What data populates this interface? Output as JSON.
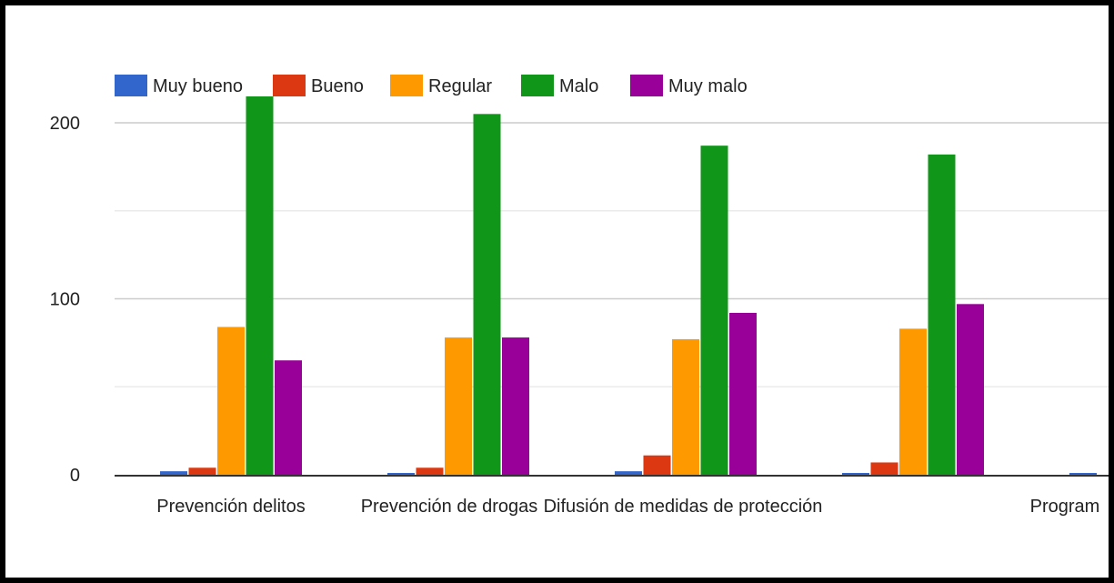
{
  "chart_data": {
    "type": "bar",
    "title": "",
    "xlabel": "",
    "ylabel": "",
    "ylim": [
      0,
      230
    ],
    "yticks": [
      0,
      100,
      200
    ],
    "grid": true,
    "legend_position": "top-left",
    "categories": [
      "Prevención delitos",
      "Prevención de drogas",
      "Difusión de medidas de protección",
      "",
      "Program"
    ],
    "series": [
      {
        "name": "Muy bueno",
        "color": "#3366cc",
        "values": [
          2,
          1,
          2,
          1,
          1
        ]
      },
      {
        "name": "Bueno",
        "color": "#dc3912",
        "values": [
          4,
          4,
          11,
          7,
          null
        ]
      },
      {
        "name": "Regular",
        "color": "#ff9900",
        "values": [
          84,
          78,
          77,
          83,
          null
        ]
      },
      {
        "name": "Malo",
        "color": "#109618",
        "values": [
          215,
          205,
          187,
          182,
          null
        ]
      },
      {
        "name": "Muy malo",
        "color": "#990099",
        "values": [
          65,
          78,
          92,
          97,
          null
        ]
      }
    ]
  }
}
